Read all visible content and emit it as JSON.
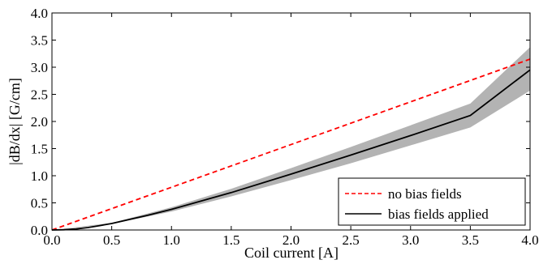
{
  "chart_data": {
    "type": "line",
    "title": "",
    "xlabel": "Coil current [A]",
    "ylabel": "|dB/dx| [G/cm]",
    "xlim": [
      0,
      4
    ],
    "ylim": [
      0,
      4
    ],
    "x_ticks": [
      "0.0",
      "0.5",
      "1.0",
      "1.5",
      "2.0",
      "2.5",
      "3.0",
      "3.5",
      "4.0"
    ],
    "y_ticks": [
      "0.0",
      "0.5",
      "1.0",
      "1.5",
      "2.0",
      "2.5",
      "3.0",
      "3.5",
      "4.0"
    ],
    "grid": false,
    "legend_position": "bottom-right",
    "series": [
      {
        "name": "no bias fields",
        "style": "dashed",
        "color": "#ff0000",
        "x": [
          0,
          4
        ],
        "y": [
          0,
          3.15
        ]
      },
      {
        "name": "bias fields applied",
        "style": "solid",
        "color": "#000000",
        "x": [
          0,
          0.1,
          0.2,
          0.3,
          0.4,
          0.5,
          0.6,
          0.8,
          1.0,
          1.5,
          2.0,
          2.5,
          3.0,
          3.5,
          4.0
        ],
        "y": [
          0,
          0.005,
          0.02,
          0.045,
          0.08,
          0.12,
          0.17,
          0.27,
          0.38,
          0.69,
          1.03,
          1.38,
          1.74,
          2.11,
          2.95
        ]
      }
    ],
    "band": {
      "color": "#b3b3b3",
      "x": [
        0,
        0.5,
        1.0,
        1.5,
        2.0,
        2.5,
        3.0,
        3.5,
        4.0
      ],
      "lower": [
        0,
        0.11,
        0.34,
        0.62,
        0.92,
        1.23,
        1.56,
        1.89,
        2.57
      ],
      "upper": [
        0,
        0.13,
        0.42,
        0.76,
        1.14,
        1.53,
        1.93,
        2.33,
        3.37
      ]
    }
  },
  "legend": {
    "items": [
      {
        "label": "no bias fields",
        "color": "#ff0000",
        "style": "dashed"
      },
      {
        "label": "bias fields applied",
        "color": "#000000",
        "style": "solid"
      }
    ]
  }
}
